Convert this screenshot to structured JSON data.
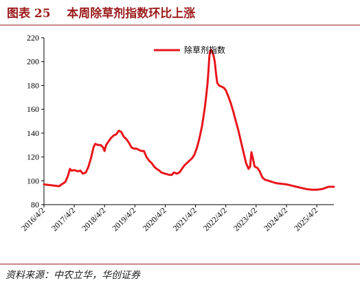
{
  "header": {
    "figure_label": "图表 25",
    "title": "本周除草剂指数环比上涨"
  },
  "footer": {
    "source": "资料来源：中农立华，华创证券"
  },
  "colors": {
    "accent": "#9b1b1b",
    "series": "#e8151b",
    "axis": "#000000"
  },
  "chart_data": {
    "type": "line",
    "title": "",
    "xlabel": "",
    "ylabel": "",
    "ylim": [
      80,
      220
    ],
    "yticks": [
      80,
      100,
      120,
      140,
      160,
      180,
      200,
      220
    ],
    "xticks": [
      "2016/4/2",
      "2017/4/2",
      "2018/4/2",
      "2019/4/2",
      "2020/4/2",
      "2021/4/2",
      "2022/4/2",
      "2023/4/2",
      "2024/4/2",
      "2025/4/2"
    ],
    "xrange": [
      "2016/4/2",
      "2025/10/25"
    ],
    "grid": false,
    "legend": "top-center",
    "series": [
      {
        "name": "除草剂指数",
        "color": "#e8151b",
        "points": [
          [
            "2016/4/2",
            97
          ],
          [
            "2016/6/1",
            96.5
          ],
          [
            "2016/8/1",
            96
          ],
          [
            "2016/10/1",
            95.5
          ],
          [
            "2016/11/1",
            97
          ],
          [
            "2016/12/15",
            99
          ],
          [
            "2017/1/15",
            104
          ],
          [
            "2017/2/10",
            110
          ],
          [
            "2017/3/1",
            108.5
          ],
          [
            "2017/4/2",
            109
          ],
          [
            "2017/5/15",
            108
          ],
          [
            "2017/6/15",
            108.5
          ],
          [
            "2017/7/15",
            106
          ],
          [
            "2017/8/20",
            107
          ],
          [
            "2017/9/20",
            112
          ],
          [
            "2017/10/20",
            119
          ],
          [
            "2017/11/20",
            128
          ],
          [
            "2017/12/10",
            131
          ],
          [
            "2018/1/15",
            130
          ],
          [
            "2018/2/15",
            130
          ],
          [
            "2018/3/15",
            128
          ],
          [
            "2018/4/2",
            125
          ],
          [
            "2018/4/20",
            130
          ],
          [
            "2018/5/20",
            133
          ],
          [
            "2018/6/20",
            136
          ],
          [
            "2018/7/20",
            138
          ],
          [
            "2018/8/20",
            139
          ],
          [
            "2018/9/20",
            142
          ],
          [
            "2018/10/20",
            141
          ],
          [
            "2018/11/20",
            137
          ],
          [
            "2018/12/20",
            135
          ],
          [
            "2019/1/20",
            132
          ],
          [
            "2019/2/20",
            128
          ],
          [
            "2019/3/20",
            127
          ],
          [
            "2019/4/20",
            127
          ],
          [
            "2019/5/20",
            126
          ],
          [
            "2019/6/20",
            125
          ],
          [
            "2019/7/20",
            125
          ],
          [
            "2019/8/20",
            120
          ],
          [
            "2019/9/20",
            117
          ],
          [
            "2019/10/20",
            115
          ],
          [
            "2019/11/20",
            112
          ],
          [
            "2019/12/20",
            110
          ],
          [
            "2020/1/15",
            109
          ],
          [
            "2020/2/15",
            107
          ],
          [
            "2020/4/2",
            106
          ],
          [
            "2020/5/20",
            105
          ],
          [
            "2020/6/20",
            105
          ],
          [
            "2020/7/15",
            107
          ],
          [
            "2020/8/20",
            106
          ],
          [
            "2020/9/20",
            107
          ],
          [
            "2020/10/20",
            110
          ],
          [
            "2020/11/20",
            113
          ],
          [
            "2020/12/20",
            115
          ],
          [
            "2021/1/20",
            117
          ],
          [
            "2021/2/20",
            119
          ],
          [
            "2021/3/20",
            122
          ],
          [
            "2021/4/20",
            128
          ],
          [
            "2021/5/20",
            136
          ],
          [
            "2021/6/20",
            146
          ],
          [
            "2021/7/20",
            160
          ],
          [
            "2021/8/10",
            172
          ],
          [
            "2021/8/25",
            182
          ],
          [
            "2021/9/5",
            193
          ],
          [
            "2021/9/15",
            204
          ],
          [
            "2021/9/25",
            209
          ],
          [
            "2021/10/5",
            210
          ],
          [
            "2021/10/20",
            208
          ],
          [
            "2021/11/5",
            205
          ],
          [
            "2021/11/20",
            200
          ],
          [
            "2021/12/5",
            190
          ],
          [
            "2021/12/20",
            182
          ],
          [
            "2022/1/10",
            180
          ],
          [
            "2022/2/10",
            179
          ],
          [
            "2022/3/10",
            178
          ],
          [
            "2022/4/2",
            176
          ],
          [
            "2022/5/1",
            171
          ],
          [
            "2022/6/1",
            165
          ],
          [
            "2022/7/1",
            158
          ],
          [
            "2022/8/1",
            150
          ],
          [
            "2022/9/1",
            142
          ],
          [
            "2022/10/1",
            133
          ],
          [
            "2022/11/1",
            124
          ],
          [
            "2022/12/1",
            115
          ],
          [
            "2023/1/1",
            110
          ],
          [
            "2023/1/20",
            112
          ],
          [
            "2023/2/5",
            124
          ],
          [
            "2023/2/25",
            118
          ],
          [
            "2023/3/15",
            112
          ],
          [
            "2023/4/15",
            111
          ],
          [
            "2023/5/15",
            108
          ],
          [
            "2023/6/15",
            103
          ],
          [
            "2023/7/15",
            101
          ],
          [
            "2023/9/1",
            100
          ],
          [
            "2023/10/15",
            99
          ],
          [
            "2023/12/1",
            98
          ],
          [
            "2024/2/1",
            97.5
          ],
          [
            "2024/4/2",
            97
          ],
          [
            "2024/6/1",
            96
          ],
          [
            "2024/8/1",
            95
          ],
          [
            "2024/10/1",
            94
          ],
          [
            "2024/12/1",
            93
          ],
          [
            "2025/2/1",
            92.5
          ],
          [
            "2025/4/2",
            92.5
          ],
          [
            "2025/6/1",
            93
          ],
          [
            "2025/7/15",
            94
          ],
          [
            "2025/8/20",
            95
          ],
          [
            "2025/9/20",
            95
          ],
          [
            "2025/10/25",
            95
          ]
        ]
      }
    ]
  }
}
